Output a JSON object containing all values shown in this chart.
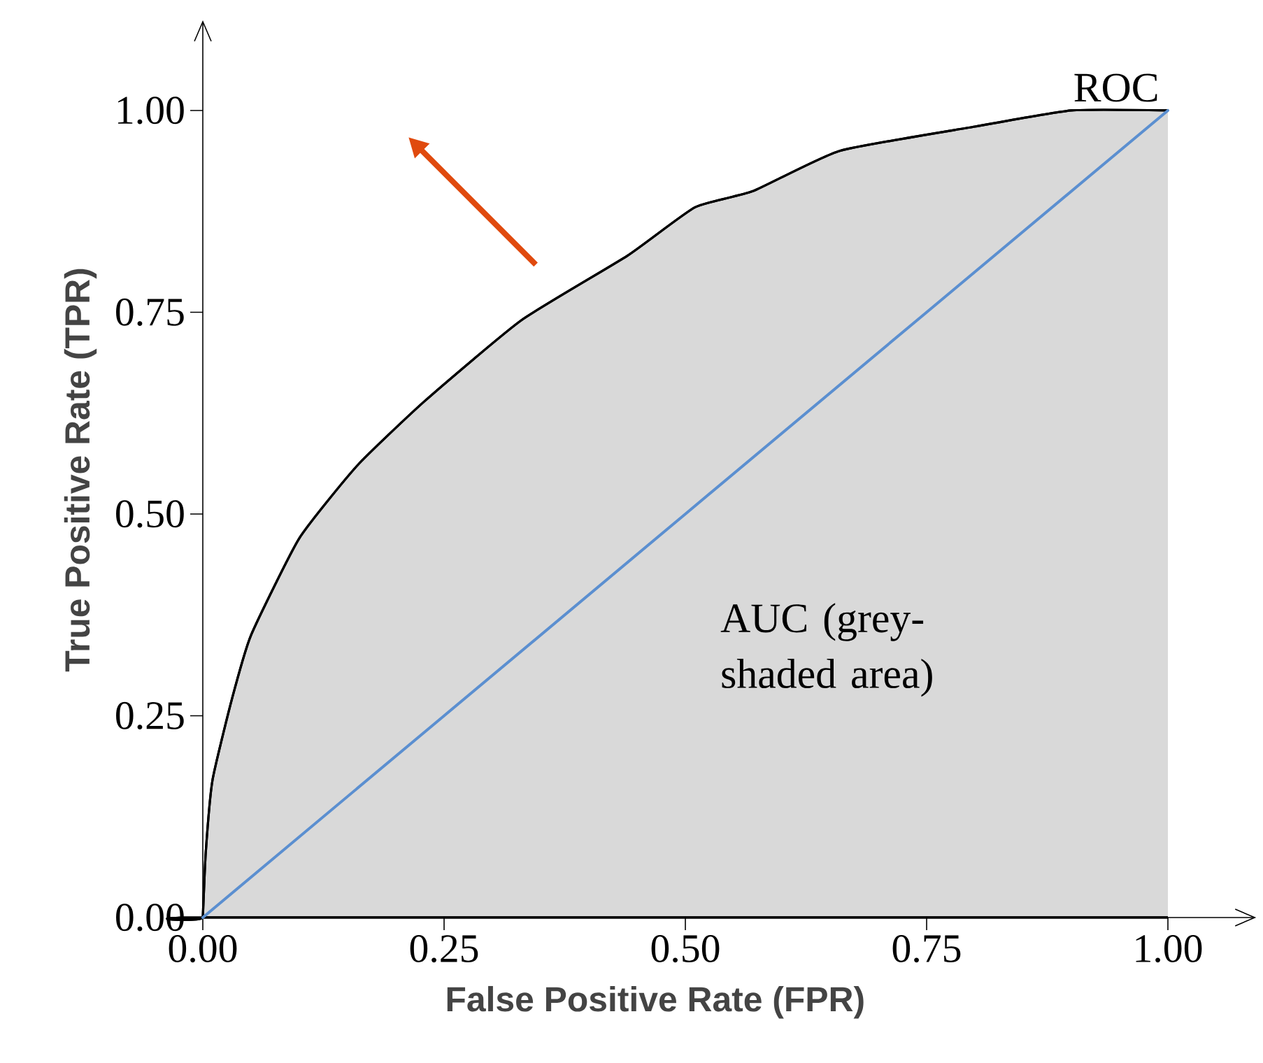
{
  "chart_data": {
    "type": "area",
    "xlabel": "False Positive Rate (FPR)",
    "ylabel": "True Positive Rate (TPR)",
    "xlim": [
      0,
      1.09
    ],
    "ylim": [
      0,
      1.11
    ],
    "xticks": [
      {
        "value": 0,
        "label": "0.00"
      },
      {
        "value": 0.25,
        "label": "0.25"
      },
      {
        "value": 0.5,
        "label": "0.50"
      },
      {
        "value": 0.75,
        "label": "0.75"
      },
      {
        "value": 1,
        "label": "1.00"
      }
    ],
    "yticks": [
      {
        "value": 0,
        "label": "0.00"
      },
      {
        "value": 0.25,
        "label": "0.25"
      },
      {
        "value": 0.5,
        "label": "0.50"
      },
      {
        "value": 0.75,
        "label": "0.75"
      },
      {
        "value": 1,
        "label": "1.00"
      }
    ],
    "series": [
      {
        "name": "ROC",
        "color": "#d9d9d9",
        "x": [
          0,
          0.003,
          0.01,
          0.03,
          0.05,
          0.1,
          0.16,
          0.23,
          0.33,
          0.44,
          0.51,
          0.57,
          0.66,
          0.8,
          0.9,
          1
        ],
        "values": [
          0,
          0.08,
          0.17,
          0.27,
          0.35,
          0.47,
          0.56,
          0.64,
          0.74,
          0.82,
          0.88,
          0.9,
          0.95,
          0.98,
          1,
          1
        ]
      },
      {
        "type": "line",
        "color": "#5b8fd0",
        "x": [
          0,
          0.25,
          0.5,
          0.75,
          1
        ],
        "values": [
          0,
          0.25,
          0.5,
          0.75,
          1
        ]
      }
    ],
    "annotations": [
      "AUC (grey-shaded area)"
    ],
    "grid": false
  }
}
